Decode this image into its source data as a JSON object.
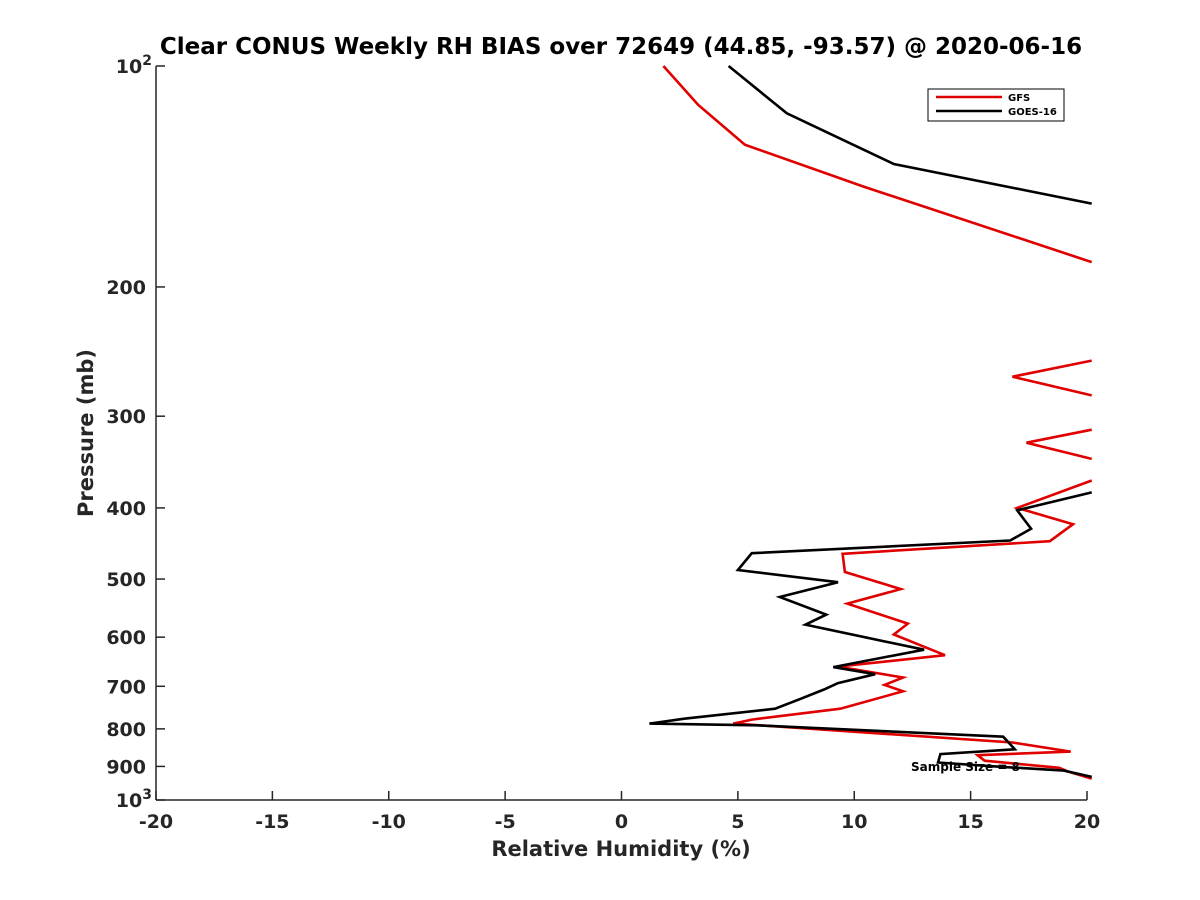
{
  "chart_data": {
    "type": "line",
    "title": "Clear CONUS Weekly RH BIAS over 72649 (44.85, -93.57) @ 2020-06-16",
    "xlabel": "Relative Humidity (%)",
    "ylabel": "Pressure (mb)",
    "xlim": [
      -20,
      20
    ],
    "ylim": [
      100,
      1000
    ],
    "yscale": "log",
    "y_reversed": true,
    "xticks": [
      "-20",
      "-15",
      "-10",
      "-5",
      "0",
      "5",
      "10",
      "15",
      "20"
    ],
    "yticks": [
      {
        "value": 100,
        "label": "10",
        "sup": "2"
      },
      {
        "value": 200,
        "label": "200",
        "sup": ""
      },
      {
        "value": 300,
        "label": "300",
        "sup": ""
      },
      {
        "value": 400,
        "label": "400",
        "sup": ""
      },
      {
        "value": 500,
        "label": "500",
        "sup": ""
      },
      {
        "value": 600,
        "label": "600",
        "sup": ""
      },
      {
        "value": 700,
        "label": "700",
        "sup": ""
      },
      {
        "value": 800,
        "label": "800",
        "sup": ""
      },
      {
        "value": 900,
        "label": "900",
        "sup": ""
      },
      {
        "value": 1000,
        "label": "10",
        "sup": "3"
      }
    ],
    "grid": false,
    "legend_position": "top-right",
    "annotation": "Sample Size = 8",
    "series": [
      {
        "name": "GFS",
        "color": "#e00000",
        "points": [
          [
            1.8,
            100
          ],
          [
            3.3,
            113
          ],
          [
            5.3,
            128
          ],
          [
            10.4,
            146
          ],
          [
            20.2,
            185
          ],
          [
            null,
            null
          ],
          [
            20.2,
            252
          ],
          [
            16.8,
            265
          ],
          [
            20.2,
            281
          ],
          [
            null,
            null
          ],
          [
            20.2,
            313
          ],
          [
            17.4,
            326
          ],
          [
            20.2,
            343
          ],
          [
            null,
            null
          ],
          [
            20.2,
            367
          ],
          [
            17.0,
            400
          ],
          [
            19.4,
            421
          ],
          [
            18.4,
            444
          ],
          [
            9.5,
            462
          ],
          [
            9.6,
            489
          ],
          [
            12.0,
            516
          ],
          [
            9.7,
            540
          ],
          [
            12.3,
            575
          ],
          [
            11.7,
            595
          ],
          [
            13.9,
            635
          ],
          [
            9.3,
            658
          ],
          [
            12.1,
            681
          ],
          [
            11.3,
            697
          ],
          [
            12.1,
            711
          ],
          [
            9.4,
            751
          ],
          [
            5.6,
            777
          ],
          [
            4.8,
            787
          ],
          [
            5.7,
            790
          ],
          [
            16.8,
            835
          ],
          [
            19.3,
            859
          ],
          [
            15.3,
            869
          ],
          [
            15.6,
            884
          ],
          [
            18.8,
            904
          ],
          [
            19.2,
            915
          ],
          [
            20.2,
            935
          ]
        ]
      },
      {
        "name": "GOES-16",
        "color": "#000000",
        "points": [
          [
            4.6,
            100
          ],
          [
            7.1,
            116
          ],
          [
            11.7,
            136
          ],
          [
            20.2,
            154
          ],
          [
            null,
            null
          ],
          [
            20.2,
            381
          ],
          [
            17.0,
            403
          ],
          [
            17.3,
            415
          ],
          [
            17.6,
            427
          ],
          [
            16.7,
            443
          ],
          [
            5.6,
            461
          ],
          [
            5.0,
            486
          ],
          [
            9.3,
            505
          ],
          [
            6.8,
            529
          ],
          [
            8.8,
            559
          ],
          [
            7.9,
            577
          ],
          [
            13.0,
            624
          ],
          [
            9.1,
            659
          ],
          [
            10.9,
            674
          ],
          [
            9.3,
            693
          ],
          [
            8.7,
            707
          ],
          [
            7.6,
            730
          ],
          [
            6.6,
            751
          ],
          [
            2.7,
            775
          ],
          [
            1.2,
            787
          ],
          [
            5.8,
            791
          ],
          [
            16.4,
            820
          ],
          [
            16.9,
            853
          ],
          [
            13.7,
            866
          ],
          [
            13.6,
            889
          ],
          [
            15.8,
            899
          ],
          [
            19.0,
            912
          ],
          [
            20.2,
            930
          ]
        ]
      }
    ]
  }
}
